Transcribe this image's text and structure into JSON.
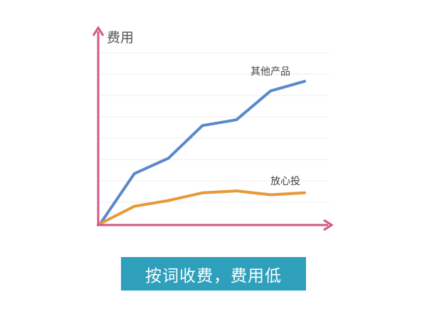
{
  "chart_data": {
    "type": "line",
    "ylabel": "费用",
    "xlabel": "",
    "x": [
      0,
      1,
      2,
      3,
      4,
      5,
      6
    ],
    "ylim": [
      0,
      10
    ],
    "series": [
      {
        "name": "其他产品",
        "values": [
          0,
          2.6,
          3.4,
          5.1,
          5.4,
          6.9,
          7.4
        ]
      },
      {
        "name": "放心投",
        "values": [
          0,
          0.9,
          1.2,
          1.6,
          1.7,
          1.5,
          1.6
        ]
      }
    ]
  },
  "colors": {
    "axis": "#d25586",
    "grid": "#ececec",
    "series_other": "#5b88cc",
    "series_fangxin": "#e7993a",
    "caption_bg": "#2ea0bc"
  },
  "caption": "按词收费，费用低"
}
